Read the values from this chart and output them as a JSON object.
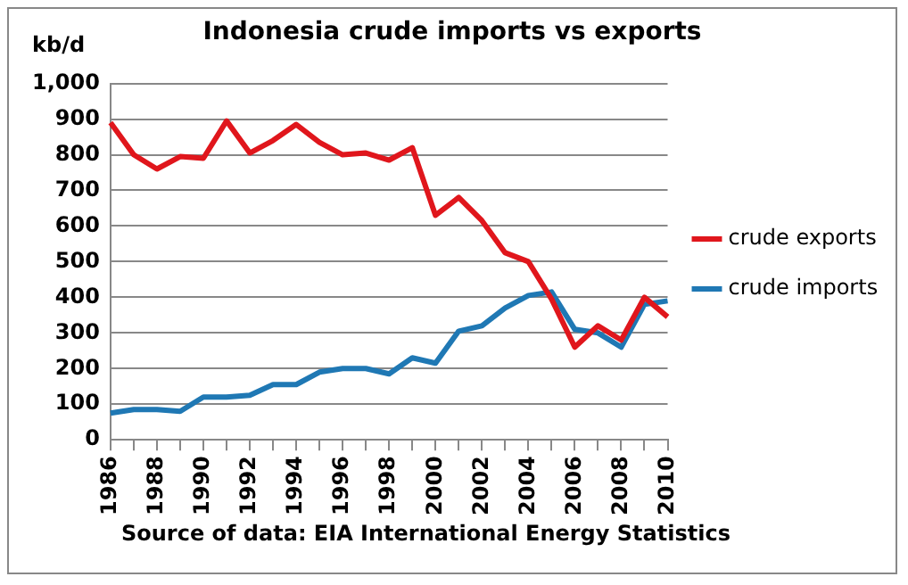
{
  "chart_data": {
    "type": "line",
    "title": "Indonesia crude imports vs exports",
    "ylabel": "kb/d",
    "categories": [
      "1986",
      null,
      "1988",
      null,
      "1990",
      null,
      "1992",
      null,
      "1994",
      null,
      "1996",
      null,
      "1998",
      null,
      "2000",
      null,
      "2002",
      null,
      "2004",
      null,
      "2006",
      null,
      "2008",
      null,
      "2010"
    ],
    "series": [
      {
        "name": "crude exports",
        "color": "#e0161c",
        "values": [
          890,
          800,
          760,
          795,
          790,
          895,
          805,
          840,
          885,
          835,
          800,
          805,
          785,
          820,
          630,
          680,
          615,
          525,
          500,
          395,
          260,
          320,
          280,
          400,
          345
        ]
      },
      {
        "name": "crude imports",
        "color": "#1f78b4",
        "values": [
          75,
          85,
          85,
          80,
          120,
          120,
          125,
          155,
          155,
          190,
          200,
          200,
          185,
          230,
          215,
          305,
          320,
          370,
          405,
          415,
          310,
          300,
          260,
          380,
          390
        ]
      }
    ],
    "ylim": [
      0,
      1000
    ],
    "yticks": [
      0,
      100,
      200,
      300,
      400,
      500,
      600,
      700,
      800,
      900,
      {
        "value": 1000,
        "label": "1,000"
      }
    ],
    "grid": "y",
    "legend": "right",
    "marker": "none",
    "line_style": "solid",
    "annotations": [
      "Source of data: EIA International Energy Statistics"
    ]
  }
}
